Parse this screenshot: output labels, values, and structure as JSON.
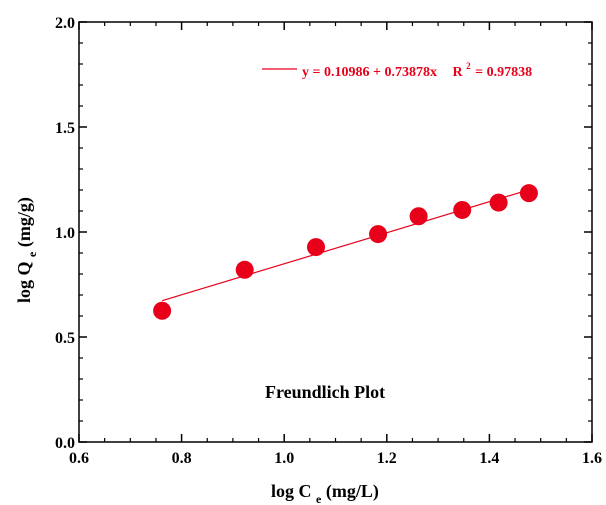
{
  "chart_data": {
    "type": "scatter",
    "title": "",
    "xlabel_main": "log C",
    "xlabel_sub": "e",
    "xlabel_unit": " (mg/L)",
    "ylabel_main": "log Q",
    "ylabel_sub": "e",
    "ylabel_unit": " (mg/g)",
    "xlim": [
      0.6,
      1.6
    ],
    "ylim": [
      0.0,
      2.0
    ],
    "x_ticks": [
      "0.6",
      "0.8",
      "1.0",
      "1.2",
      "1.4",
      "1.6"
    ],
    "y_ticks": [
      "0.0",
      "0.5",
      "1.0",
      "1.5",
      "2.0"
    ],
    "points": [
      {
        "x": 0.762,
        "y": 0.625
      },
      {
        "x": 0.923,
        "y": 0.82
      },
      {
        "x": 1.062,
        "y": 0.928
      },
      {
        "x": 1.183,
        "y": 0.99
      },
      {
        "x": 1.262,
        "y": 1.075
      },
      {
        "x": 1.347,
        "y": 1.105
      },
      {
        "x": 1.418,
        "y": 1.14
      },
      {
        "x": 1.477,
        "y": 1.185
      }
    ],
    "fit": {
      "intercept": 0.10986,
      "slope": 0.73878,
      "x_start": 0.762,
      "x_end": 1.477
    },
    "legend_label": "y = 0.10986 + 0.73878x",
    "r2_label_main": "R",
    "r2_label_sup": "2",
    "r2_label_value": "= 0.97838",
    "legend_position": "top-right",
    "annotation": "Freundlich Plot",
    "grid": false,
    "colors": {
      "series": "#e8001a",
      "axis": "#000000"
    }
  }
}
